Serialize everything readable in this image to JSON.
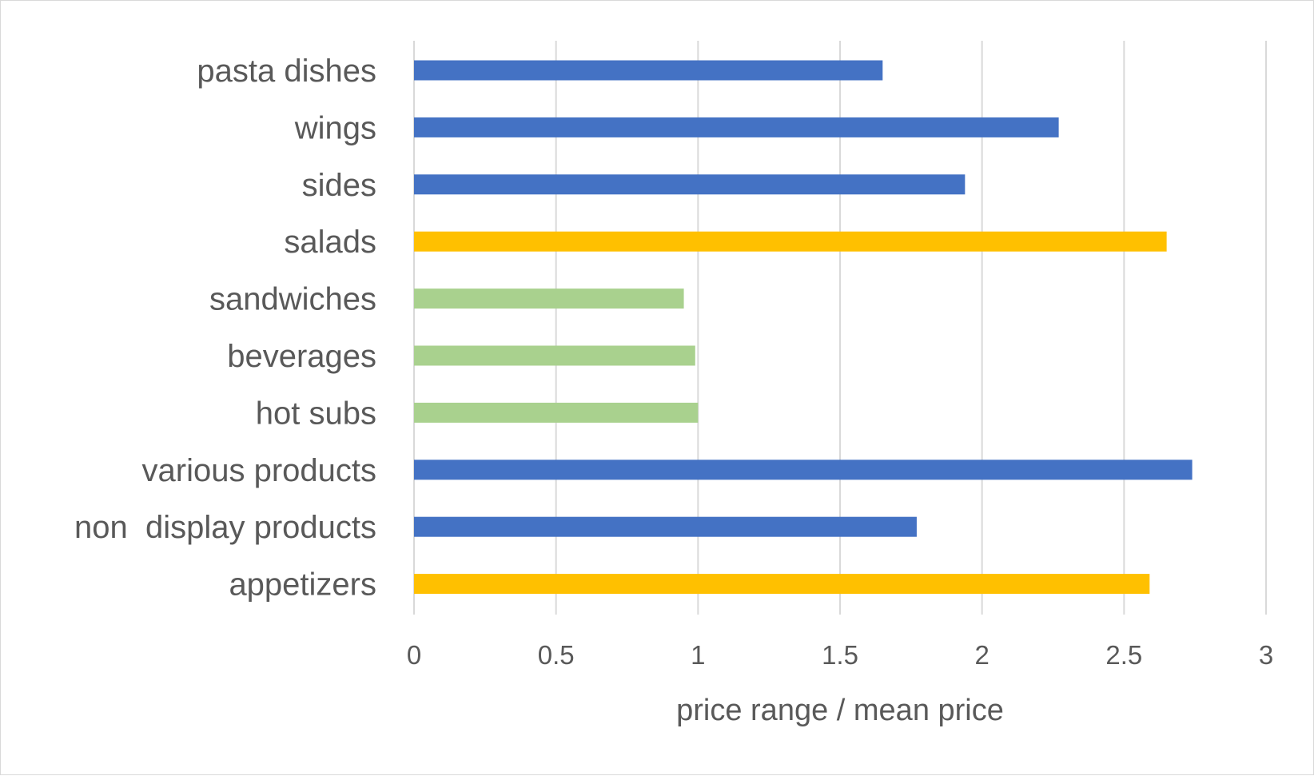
{
  "chart_data": {
    "type": "bar",
    "orientation": "horizontal",
    "title": "",
    "xlabel": "price range / mean price",
    "ylabel": "",
    "xlim": [
      0,
      3
    ],
    "xticks": [
      0,
      0.5,
      1,
      1.5,
      2,
      2.5,
      3
    ],
    "xtick_labels": [
      "0",
      "0.5",
      "1",
      "1.5",
      "2",
      "2.5",
      "3"
    ],
    "grid": "vertical",
    "legend": "none",
    "categories": [
      "pasta dishes",
      "wings",
      "sides",
      "salads",
      "sandwiches",
      "beverages",
      "hot subs",
      "various products",
      "non  display products",
      "appetizers"
    ],
    "values": [
      1.65,
      2.27,
      1.94,
      2.65,
      0.95,
      0.99,
      1.0,
      2.74,
      1.77,
      2.59
    ],
    "bar_colors": [
      "#4472C4",
      "#4472C4",
      "#4472C4",
      "#FFC000",
      "#A9D18E",
      "#A9D18E",
      "#A9D18E",
      "#4472C4",
      "#4472C4",
      "#FFC000"
    ]
  },
  "colors": {
    "text": "#595959",
    "grid": "#d9d9d9",
    "border": "#d9d9d9",
    "background": "#ffffff"
  }
}
